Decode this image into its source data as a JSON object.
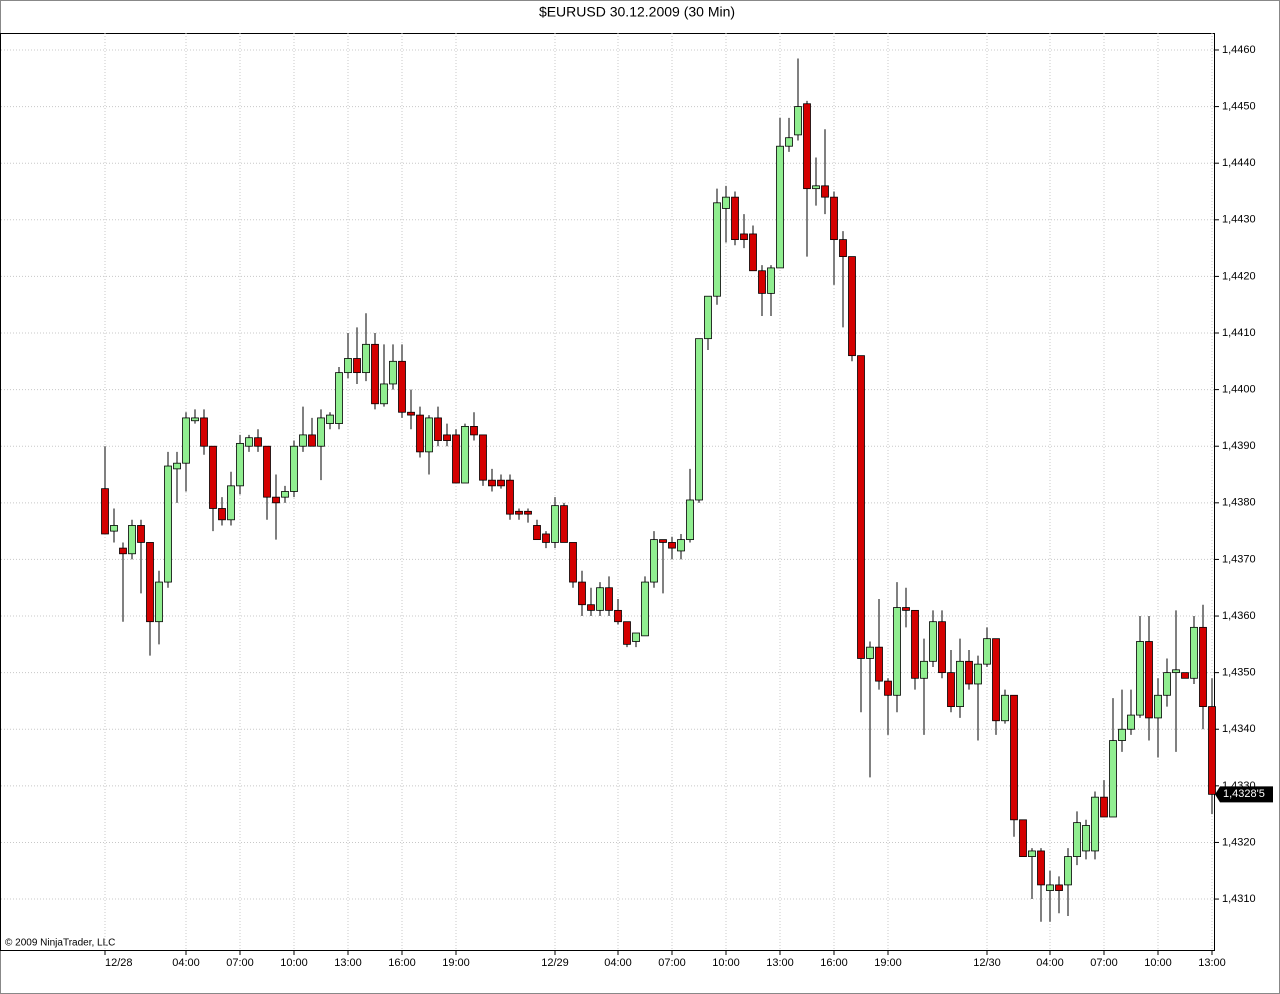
{
  "chart_data": {
    "type": "candlestick",
    "title": "$EURUSD  30.12.2009 (30 Min)",
    "copyright": "© 2009 NinjaTrader, LLC",
    "categories": [
      "12/28",
      null,
      null,
      null,
      null,
      null,
      null,
      null,
      null,
      "04:00",
      null,
      null,
      null,
      null,
      null,
      "07:00",
      null,
      null,
      null,
      null,
      null,
      "10:00",
      null,
      null,
      null,
      null,
      null,
      "13:00",
      null,
      null,
      null,
      null,
      null,
      "16:00",
      null,
      null,
      null,
      null,
      null,
      "19:00",
      null,
      null,
      null,
      null,
      null,
      null,
      null,
      null,
      null,
      null,
      "12/29",
      null,
      null,
      null,
      null,
      null,
      null,
      "04:00",
      null,
      null,
      null,
      null,
      null,
      "07:00",
      null,
      null,
      null,
      null,
      null,
      "10:00",
      null,
      null,
      null,
      null,
      null,
      "13:00",
      null,
      null,
      null,
      null,
      null,
      "16:00",
      null,
      null,
      null,
      null,
      null,
      "19:00",
      null,
      null,
      null,
      null,
      null,
      null,
      null,
      null,
      null,
      null,
      "12/30",
      null,
      null,
      null,
      null,
      null,
      null,
      "04:00",
      null,
      null,
      null,
      null,
      null,
      "07:00",
      null,
      null,
      null,
      null,
      null,
      "10:00",
      null,
      null,
      null,
      null,
      null,
      "13:00"
    ],
    "open": [
      1.43825,
      1.4375,
      1.4372,
      1.4371,
      1.4376,
      1.4373,
      1.4359,
      1.4366,
      1.4386,
      1.4387,
      1.43945,
      1.4395,
      1.439,
      1.4379,
      1.4377,
      1.4383,
      1.439,
      1.43915,
      1.439,
      1.4381,
      1.4381,
      1.4382,
      1.439,
      1.4392,
      1.439,
      1.4394,
      1.4394,
      1.4403,
      1.44055,
      1.4403,
      1.4408,
      1.43975,
      1.4401,
      1.4405,
      1.4396,
      1.43955,
      1.4389,
      1.4395,
      1.4392,
      1.4392,
      1.43835,
      1.43935,
      1.4392,
      1.4384,
      1.4384,
      1.4384,
      1.43785,
      1.43785,
      1.4376,
      1.43745,
      1.4373,
      1.43795,
      1.4373,
      1.4366,
      1.4362,
      1.4361,
      1.4365,
      1.4361,
      1.4359,
      1.43555,
      1.43565,
      1.4366,
      1.43735,
      1.4373,
      1.43715,
      1.43735,
      1.43805,
      1.4409,
      1.44165,
      1.4432,
      1.4434,
      1.44275,
      1.44275,
      1.4421,
      1.4417,
      1.44215,
      1.4443,
      1.4445,
      1.44505,
      1.44355,
      1.4436,
      1.4434,
      1.44265,
      1.44235,
      1.4406,
      1.43525,
      1.43545,
      1.43485,
      1.4346,
      1.43615,
      1.4361,
      1.4349,
      1.4352,
      1.4359,
      1.435,
      1.4344,
      1.4352,
      1.4348,
      1.43515,
      1.4356,
      1.43415,
      1.4346,
      1.4324,
      1.43175,
      1.43185,
      1.43115,
      1.43125,
      1.43125,
      1.43175,
      1.43185,
      1.43185,
      1.4328,
      1.43245,
      1.4338,
      1.434,
      1.43425,
      1.43555,
      1.4342,
      1.4346,
      1.435,
      1.435,
      1.4349,
      1.4358,
      1.4344
    ],
    "high": [
      1.439,
      1.4379,
      1.4373,
      1.4377,
      1.4377,
      1.4373,
      1.4368,
      1.4389,
      1.4389,
      1.4396,
      1.43965,
      1.43965,
      1.439,
      1.4381,
      1.43855,
      1.4392,
      1.4392,
      1.4393,
      1.439,
      1.4385,
      1.4383,
      1.4391,
      1.4397,
      1.4395,
      1.43965,
      1.4396,
      1.4404,
      1.441,
      1.4411,
      1.44135,
      1.441,
      1.4408,
      1.4408,
      1.4408,
      1.44,
      1.4397,
      1.43955,
      1.4397,
      1.4394,
      1.4393,
      1.4394,
      1.4396,
      1.4392,
      1.4386,
      1.4385,
      1.4385,
      1.4379,
      1.4379,
      1.4377,
      1.4375,
      1.4381,
      1.438,
      1.4373,
      1.4368,
      1.4365,
      1.4366,
      1.4367,
      1.4363,
      1.4359,
      1.4357,
      1.4367,
      1.4375,
      1.43735,
      1.4374,
      1.43745,
      1.4386,
      1.4409,
      1.44165,
      1.44355,
      1.4436,
      1.4435,
      1.4431,
      1.4429,
      1.4422,
      1.4422,
      1.4448,
      1.4448,
      1.44585,
      1.4451,
      1.4441,
      1.4446,
      1.4435,
      1.4428,
      1.44235,
      1.4406,
      1.43555,
      1.4363,
      1.4349,
      1.4366,
      1.4365,
      1.4361,
      1.4356,
      1.4361,
      1.4361,
      1.4354,
      1.4356,
      1.4354,
      1.4353,
      1.4358,
      1.4356,
      1.4347,
      1.4346,
      1.4324,
      1.4319,
      1.4319,
      1.4315,
      1.4314,
      1.4319,
      1.43255,
      1.4324,
      1.4329,
      1.4331,
      1.43455,
      1.4347,
      1.4347,
      1.436,
      1.436,
      1.4349,
      1.43525,
      1.4361,
      1.435,
      1.436,
      1.4362,
      1.4349
    ],
    "low": [
      1.4375,
      1.4373,
      1.4359,
      1.437,
      1.4364,
      1.4353,
      1.4355,
      1.4365,
      1.438,
      1.4382,
      1.4394,
      1.43885,
      1.4375,
      1.4376,
      1.4376,
      1.43815,
      1.4389,
      1.4389,
      1.4377,
      1.43735,
      1.438,
      1.4381,
      1.4389,
      1.439,
      1.4384,
      1.4393,
      1.4393,
      1.4402,
      1.4401,
      1.44015,
      1.43965,
      1.4397,
      1.44,
      1.4395,
      1.4393,
      1.4388,
      1.4385,
      1.439,
      1.439,
      1.43835,
      1.43835,
      1.4391,
      1.4383,
      1.4382,
      1.43825,
      1.4377,
      1.4377,
      1.43765,
      1.43735,
      1.4372,
      1.4372,
      1.4373,
      1.4365,
      1.436,
      1.436,
      1.436,
      1.436,
      1.43585,
      1.43545,
      1.43545,
      1.43565,
      1.4365,
      1.4364,
      1.437,
      1.437,
      1.4373,
      1.438,
      1.4407,
      1.4415,
      1.4426,
      1.44255,
      1.4425,
      1.4421,
      1.4413,
      1.4413,
      1.44215,
      1.4442,
      1.4444,
      1.44235,
      1.44325,
      1.4431,
      1.44185,
      1.4411,
      1.4405,
      1.4343,
      1.43315,
      1.4347,
      1.4339,
      1.4343,
      1.4358,
      1.4347,
      1.4339,
      1.4351,
      1.4349,
      1.4343,
      1.4342,
      1.4347,
      1.4338,
      1.4351,
      1.4339,
      1.4341,
      1.4321,
      1.43175,
      1.431,
      1.4306,
      1.4306,
      1.43075,
      1.4307,
      1.4316,
      1.4317,
      1.4317,
      1.43245,
      1.43245,
      1.4336,
      1.4339,
      1.4342,
      1.4338,
      1.4335,
      1.4344,
      1.4336,
      1.4349,
      1.4348,
      1.434,
      1.4325
    ],
    "close": [
      1.43745,
      1.4376,
      1.4371,
      1.4376,
      1.4373,
      1.4359,
      1.4366,
      1.43865,
      1.4387,
      1.4395,
      1.4395,
      1.439,
      1.4379,
      1.4377,
      1.4383,
      1.43905,
      1.43915,
      1.439,
      1.4381,
      1.438,
      1.4382,
      1.439,
      1.4392,
      1.439,
      1.4395,
      1.43955,
      1.4403,
      1.44055,
      1.4403,
      1.4408,
      1.43975,
      1.4401,
      1.4405,
      1.4396,
      1.43955,
      1.4389,
      1.4395,
      1.4391,
      1.4391,
      1.43835,
      1.43935,
      1.4392,
      1.4384,
      1.4383,
      1.4383,
      1.4378,
      1.4378,
      1.4378,
      1.43735,
      1.4373,
      1.43795,
      1.4373,
      1.4366,
      1.4362,
      1.4361,
      1.4365,
      1.4361,
      1.4359,
      1.4355,
      1.4357,
      1.4366,
      1.43735,
      1.4373,
      1.4372,
      1.43735,
      1.43805,
      1.4409,
      1.44165,
      1.4433,
      1.4434,
      1.44265,
      1.44265,
      1.4421,
      1.4417,
      1.44215,
      1.4443,
      1.44445,
      1.445,
      1.44355,
      1.4436,
      1.4434,
      1.44265,
      1.44235,
      1.4406,
      1.43525,
      1.43545,
      1.43485,
      1.4346,
      1.43615,
      1.4361,
      1.4349,
      1.4352,
      1.4359,
      1.435,
      1.4344,
      1.4352,
      1.4348,
      1.43515,
      1.4356,
      1.43415,
      1.4346,
      1.4324,
      1.43175,
      1.43185,
      1.43125,
      1.43125,
      1.43115,
      1.43175,
      1.43235,
      1.4323,
      1.4328,
      1.43245,
      1.4338,
      1.434,
      1.43425,
      1.43555,
      1.4342,
      1.4346,
      1.435,
      1.43505,
      1.4349,
      1.4358,
      1.4344,
      1.43285
    ],
    "up_color": "#90ee90",
    "down_color": "#d40000",
    "ylim": [
      1.4301,
      1.4463
    ],
    "yticks": [
      {
        "value": 1.431,
        "label": "1,4310"
      },
      {
        "value": 1.432,
        "label": "1,4320"
      },
      {
        "value": 1.433,
        "label": "1,4330"
      },
      {
        "value": 1.434,
        "label": "1,4340"
      },
      {
        "value": 1.435,
        "label": "1,4350"
      },
      {
        "value": 1.436,
        "label": "1,4360"
      },
      {
        "value": 1.437,
        "label": "1,4370"
      },
      {
        "value": 1.438,
        "label": "1,4380"
      },
      {
        "value": 1.439,
        "label": "1,4390"
      },
      {
        "value": 1.44,
        "label": "1,4400"
      },
      {
        "value": 1.441,
        "label": "1,4410"
      },
      {
        "value": 1.442,
        "label": "1,4420"
      },
      {
        "value": 1.443,
        "label": "1,4430"
      },
      {
        "value": 1.444,
        "label": "1,4440"
      },
      {
        "value": 1.445,
        "label": "1,4450"
      },
      {
        "value": 1.446,
        "label": "1,4460"
      }
    ],
    "last_price": {
      "value": 1.43285,
      "label": "1,4328'5"
    },
    "grid": true
  }
}
